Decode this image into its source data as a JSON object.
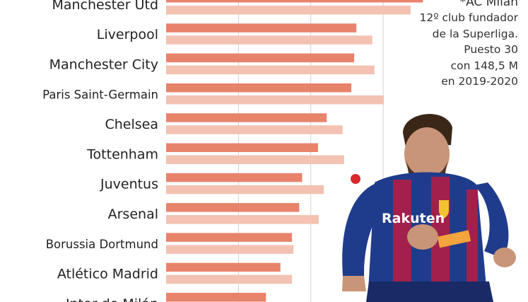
{
  "chart_data": {
    "type": "bar",
    "title": "",
    "xlabel": "",
    "ylabel": "",
    "categories": [
      "Manchester Utd",
      "Liverpool",
      "Manchester City",
      "Paris Saint-Germain",
      "Chelsea",
      "Tottenham",
      "Juventus",
      "Arsenal",
      "Borussia Dortmund",
      "Atlético Madrid",
      "Inter de Milán"
    ],
    "series": [
      {
        "values": [
          355,
          263,
          260,
          256,
          222,
          210,
          188,
          184,
          174,
          158,
          138
        ]
      },
      {
        "values": [
          338,
          285,
          288,
          301,
          244,
          246,
          218,
          211,
          176,
          174,
          172
        ]
      }
    ],
    "xlim": [
      0,
      360
    ],
    "colors": [
      "#e8836b",
      "#f3c2b2"
    ],
    "grid": true
  },
  "note": {
    "title": "*AC Milan",
    "lines": [
      "12º club fundador",
      "de la Superliga.",
      "Puesto 30",
      "con 148,5 M",
      "en 2019-2020"
    ]
  },
  "player": {
    "jersey_text": "Rakuten",
    "shirt_colors": [
      "#1f3c8c",
      "#a1214c"
    ]
  }
}
